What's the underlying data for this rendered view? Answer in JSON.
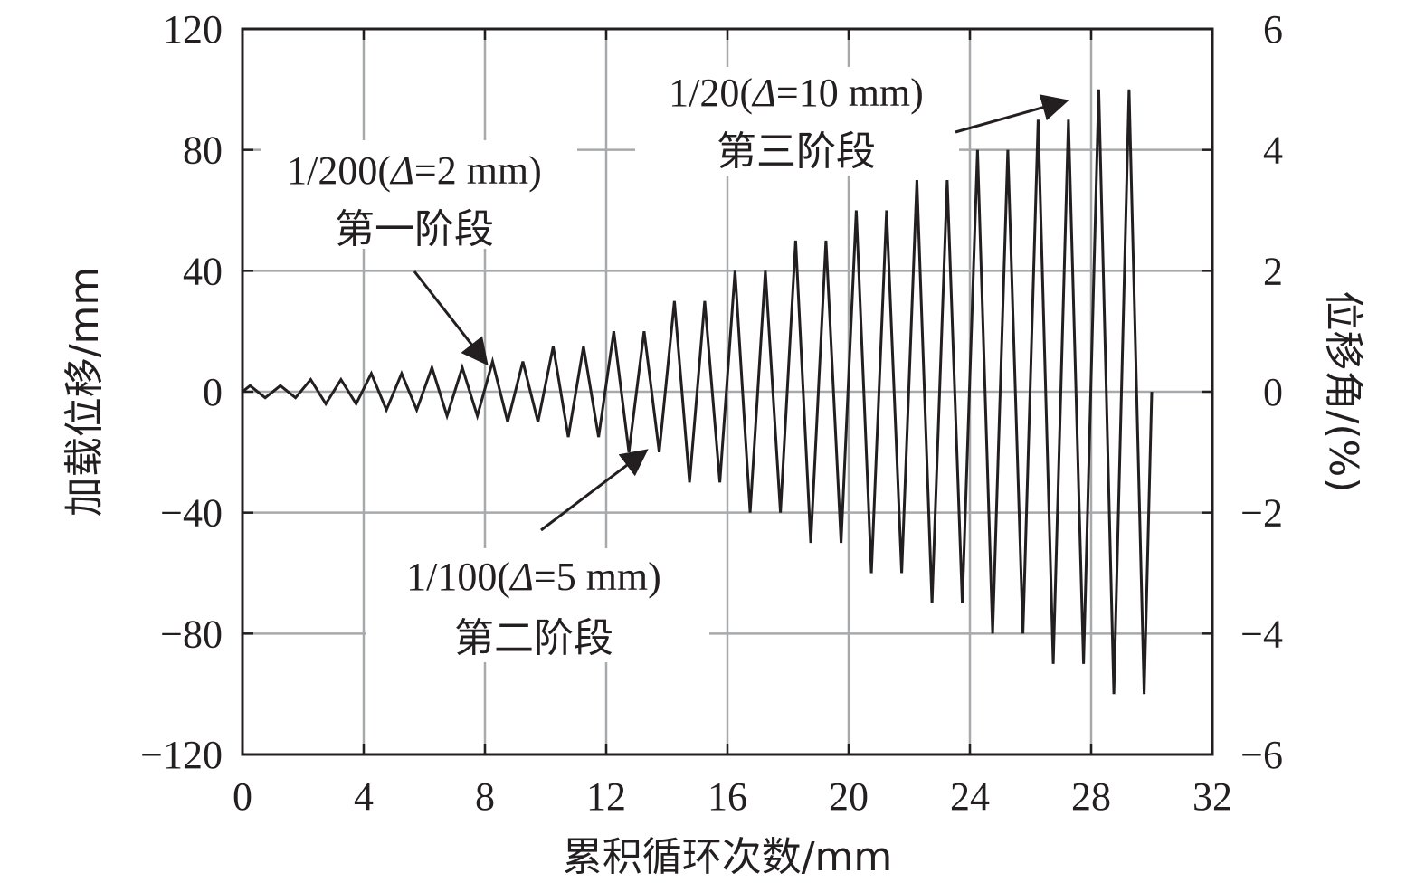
{
  "chart_data": {
    "type": "line",
    "title": "",
    "xlabel": "累积循环次数/mm",
    "ylabel": "加载位移/mm",
    "y2label": "位移角/(%)",
    "xlim": [
      0,
      32
    ],
    "ylim": [
      -120,
      120
    ],
    "y2lim": [
      -6,
      6
    ],
    "x_ticks": [
      0,
      4,
      8,
      12,
      16,
      20,
      24,
      28,
      32
    ],
    "x_tick_labels": [
      "0",
      "4",
      "8",
      "12",
      "16",
      "20",
      "24",
      "28",
      "32"
    ],
    "y_ticks": [
      -120,
      -80,
      -40,
      0,
      40,
      80,
      120
    ],
    "y_tick_labels": [
      "−120",
      "−80",
      "−40",
      "0",
      "40",
      "80",
      "120"
    ],
    "y2_ticks": [
      -6,
      -4,
      -2,
      0,
      2,
      4,
      6
    ],
    "y2_tick_labels": [
      "−6",
      "−4",
      "−2",
      "0",
      "2",
      "4",
      "6"
    ],
    "grid": true,
    "line_color": "#231f20",
    "grid_color": "#a7a9ac",
    "series": [
      {
        "x": [
          0,
          0.25,
          0.75,
          1.25,
          1.75,
          2.25,
          2.75,
          3.25,
          3.75,
          4.25,
          4.75,
          5.25,
          5.75,
          6.25,
          6.75,
          7.25,
          7.75,
          8.25,
          8.75,
          9.25,
          9.75,
          10.25,
          10.75,
          11.25,
          11.75,
          12.25,
          12.75,
          13.25,
          13.75,
          14.25,
          14.75,
          15.25,
          15.75,
          16.25,
          16.75,
          17.25,
          17.75,
          18.25,
          18.75,
          19.25,
          19.75,
          20.25,
          20.75,
          21.25,
          21.75,
          22.25,
          22.75,
          23.25,
          23.75,
          24.25,
          24.75,
          25.25,
          25.75,
          26.25,
          26.75,
          27.25,
          27.75,
          28.25,
          28.75,
          29.25,
          29.75,
          30.0
        ],
        "y": [
          0,
          2,
          -2,
          2,
          -2,
          4,
          -4,
          4,
          -4,
          6,
          -6,
          6,
          -6,
          8,
          -8,
          8,
          -8,
          10,
          -10,
          10,
          -10,
          15,
          -15,
          15,
          -15,
          20,
          -20,
          20,
          -20,
          30,
          -30,
          30,
          -30,
          40,
          -40,
          40,
          -40,
          50,
          -50,
          50,
          -50,
          60,
          -60,
          60,
          -60,
          70,
          -70,
          70,
          -70,
          80,
          -80,
          80,
          -80,
          90,
          -90,
          90,
          -90,
          100,
          -100,
          100,
          -100,
          0
        ]
      }
    ],
    "annotations": [
      {
        "line1": "1/200(Δ=2 mm)",
        "line2": "第一阶段",
        "ratio": "1/200(",
        "delta": "Δ",
        "rest": "=2 mm)",
        "arrow_to": [
          8.0,
          10
        ]
      },
      {
        "line1": "1/100(Δ=5 mm)",
        "line2": "第二阶段",
        "ratio": "1/100(",
        "delta": "Δ",
        "rest": "=5 mm)",
        "arrow_to": [
          13.25,
          -20
        ]
      },
      {
        "line1": "1/20(Δ=10 mm)",
        "line2": "第三阶段",
        "ratio": "1/20(",
        "delta": "Δ",
        "rest": "=10 mm)",
        "arrow_to": [
          27.1,
          96
        ]
      }
    ]
  }
}
